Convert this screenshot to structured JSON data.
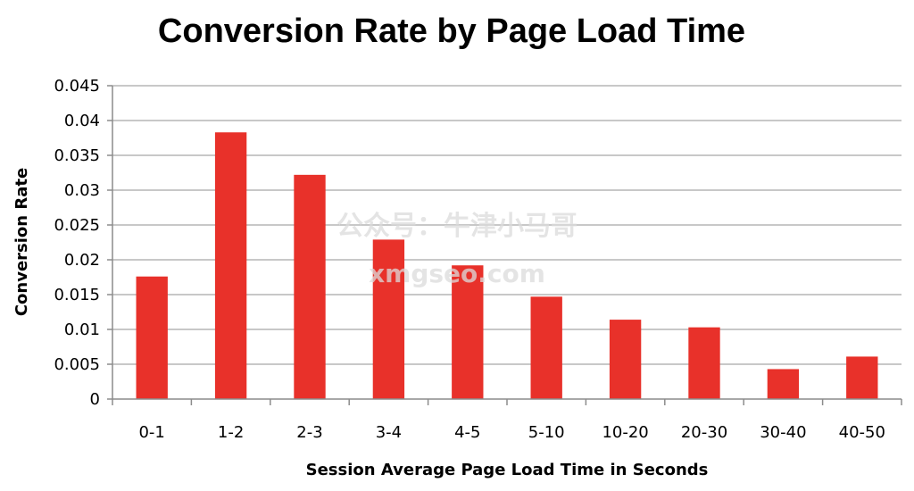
{
  "chart_data": {
    "type": "bar",
    "title": "Conversion Rate by Page Load Time",
    "xlabel": "Session Average Page Load Time in Seconds",
    "ylabel": "Conversion Rate",
    "categories": [
      "0-1",
      "1-2",
      "2-3",
      "3-4",
      "4-5",
      "5-10",
      "10-20",
      "20-30",
      "30-40",
      "40-50"
    ],
    "values": [
      0.0176,
      0.0383,
      0.0322,
      0.0229,
      0.0192,
      0.0147,
      0.0114,
      0.0103,
      0.0043,
      0.0061
    ],
    "ylim": [
      0,
      0.045
    ],
    "yticks": [
      "0",
      "0.005",
      "0.01",
      "0.015",
      "0.02",
      "0.025",
      "0.03",
      "0.035",
      "0.04",
      "0.045"
    ],
    "grid": true,
    "legend": "none",
    "bar_color": "#e8312a"
  },
  "watermark": {
    "line1": "公众号：牛津小马哥",
    "line2": "xmgseo.com"
  }
}
